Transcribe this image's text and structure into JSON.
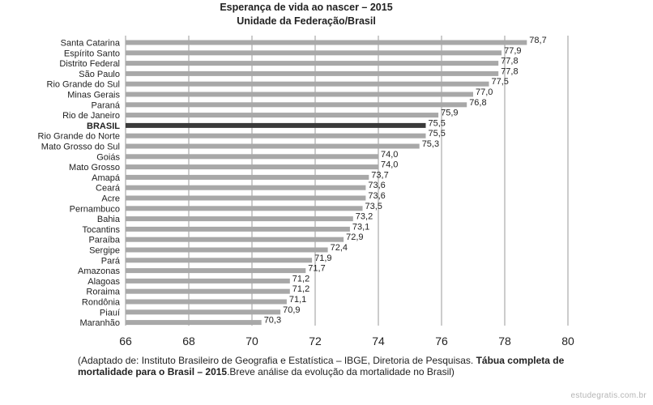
{
  "chart_data": {
    "type": "bar",
    "orientation": "horizontal",
    "title": "Esperança de vida ao nascer – 2015",
    "subtitle": "Unidade da Federação/Brasil",
    "xlim": [
      66,
      80
    ],
    "xticks": [
      "66",
      "68",
      "70",
      "72",
      "74",
      "76",
      "78",
      "80"
    ],
    "grid": true,
    "bar_color": "#a8a8a8",
    "highlight_color": "#3a3a3a",
    "categories": [
      "Santa Catarina",
      "Espírito Santo",
      "Distrito Federal",
      "São Paulo",
      "Rio Grande do Sul",
      "Minas Gerais",
      "Paraná",
      "Rio de Janeiro",
      "BRASIL",
      "Rio Grande do Norte",
      "Mato Grosso do Sul",
      "Goiás",
      "Mato Grosso",
      "Amapá",
      "Ceará",
      "Acre",
      "Pernambuco",
      "Bahia",
      "Tocantins",
      "Paraíba",
      "Sergipe",
      "Pará",
      "Amazonas",
      "Alagoas",
      "Roraima",
      "Rondônia",
      "Piauí",
      "Maranhão"
    ],
    "values": [
      78.7,
      77.9,
      77.8,
      77.8,
      77.5,
      77.0,
      76.8,
      75.9,
      75.5,
      75.5,
      75.3,
      74.0,
      74.0,
      73.7,
      73.6,
      73.6,
      73.5,
      73.2,
      73.1,
      72.9,
      72.4,
      71.9,
      71.7,
      71.2,
      71.2,
      71.1,
      70.9,
      70.3
    ],
    "value_labels": [
      "78,7",
      "77,9",
      "77,8",
      "77,8",
      "77,5",
      "77,0",
      "76,8",
      "75,9",
      "75,5",
      "75,5",
      "75,3",
      "74,0",
      "74,0",
      "73,7",
      "73,6",
      "73,6",
      "73,5",
      "73,2",
      "73,1",
      "72,9",
      "72,4",
      "71,9",
      "71,7",
      "71,2",
      "71,2",
      "71,1",
      "70,9",
      "70,3"
    ],
    "highlight": "BRASIL"
  },
  "source": {
    "prefix": "(Adaptado de: Instituto Brasileiro de Geografia e Estatística – IBGE, Diretoria de Pesquisas. ",
    "bold": "Tábua completa de mortalidade para o Brasil – 2015",
    "suffix": ".Breve análise da evolução da mortalidade no Brasil)"
  },
  "watermark": "estudegratis.com.br"
}
